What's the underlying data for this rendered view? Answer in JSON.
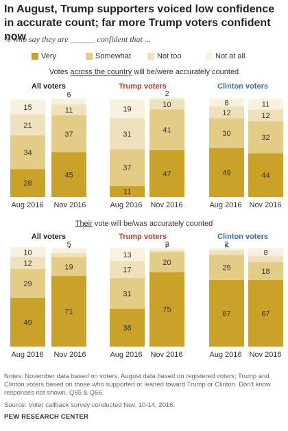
{
  "title": "In August, Trump supporters voiced low confidence in accurate count; far more Trump voters confident now",
  "subtitle": "% who say they are ______ confident that ...",
  "legend": [
    {
      "label": "Very",
      "color": "#c9a227"
    },
    {
      "label": "Somewhat",
      "color": "#e3cc85"
    },
    {
      "label": "Not too",
      "color": "#efe1bb"
    },
    {
      "label": "Not at all",
      "color": "#f8f1df"
    }
  ],
  "sections": [
    {
      "label_pre": "Votes ",
      "label_u": "across the country",
      "label_post": " will be/were accurately counted"
    },
    {
      "label_pre": "",
      "label_u": "Their",
      "label_post": " vote will be/was accurately counted"
    }
  ],
  "groups": [
    {
      "name": "All voters",
      "color": "#222222"
    },
    {
      "name": "Trump voters",
      "color": "#c0392b"
    },
    {
      "name": "Clinton voters",
      "color": "#3a6e9e"
    }
  ],
  "notes": "Notes: November data based on voters. August data based on registered voters; Trump and Clinton voters based on those who supported or leaned toward Trump or Clinton. Don't know responses not shown. Q65 & Q66.",
  "source": "Source: Voter callback survey conducted Nov. 10-14, 2016.",
  "org": "PEW RESEARCH CENTER",
  "chart_data": [
    {
      "type": "bar",
      "stacked": true,
      "title": "Votes across the country will be/were accurately counted",
      "categories": [
        "Aug 2016",
        "Nov 2016"
      ],
      "panels": [
        {
          "name": "All voters",
          "series": [
            {
              "name": "Very",
              "values": [
                28,
                45
              ]
            },
            {
              "name": "Somewhat",
              "values": [
                34,
                37
              ]
            },
            {
              "name": "Not too",
              "values": [
                21,
                11
              ]
            },
            {
              "name": "Not at all",
              "values": [
                15,
                6
              ]
            }
          ]
        },
        {
          "name": "Trump voters",
          "series": [
            {
              "name": "Very",
              "values": [
                11,
                47
              ]
            },
            {
              "name": "Somewhat",
              "values": [
                37,
                41
              ]
            },
            {
              "name": "Not too",
              "values": [
                31,
                10
              ]
            },
            {
              "name": "Not at all",
              "values": [
                19,
                2
              ]
            }
          ]
        },
        {
          "name": "Clinton voters",
          "series": [
            {
              "name": "Very",
              "values": [
                49,
                44
              ]
            },
            {
              "name": "Somewhat",
              "values": [
                30,
                32
              ]
            },
            {
              "name": "Not too",
              "values": [
                12,
                12
              ]
            },
            {
              "name": "Not at all",
              "values": [
                8,
                11
              ]
            }
          ]
        }
      ]
    },
    {
      "type": "bar",
      "stacked": true,
      "title": "Their vote will be/was accurately counted",
      "categories": [
        "Aug 2016",
        "Nov 2016"
      ],
      "panels": [
        {
          "name": "All voters",
          "series": [
            {
              "name": "Very",
              "values": [
                49,
                71
              ]
            },
            {
              "name": "Somewhat",
              "values": [
                29,
                19
              ]
            },
            {
              "name": "Not too",
              "values": [
                12,
                4
              ]
            },
            {
              "name": "Not at all",
              "values": [
                10,
                5
              ]
            }
          ]
        },
        {
          "name": "Trump voters",
          "series": [
            {
              "name": "Very",
              "values": [
                38,
                75
              ]
            },
            {
              "name": "Somewhat",
              "values": [
                31,
                20
              ]
            },
            {
              "name": "Not too",
              "values": [
                17,
                2
              ]
            },
            {
              "name": "Not at all",
              "values": [
                13,
                2
              ]
            }
          ]
        },
        {
          "name": "Clinton voters",
          "series": [
            {
              "name": "Very",
              "values": [
                67,
                67
              ]
            },
            {
              "name": "Somewhat",
              "values": [
                25,
                18
              ]
            },
            {
              "name": "Not too",
              "values": [
                5,
                6
              ]
            },
            {
              "name": "Not at all",
              "values": [
                2,
                8
              ]
            }
          ]
        }
      ]
    }
  ]
}
